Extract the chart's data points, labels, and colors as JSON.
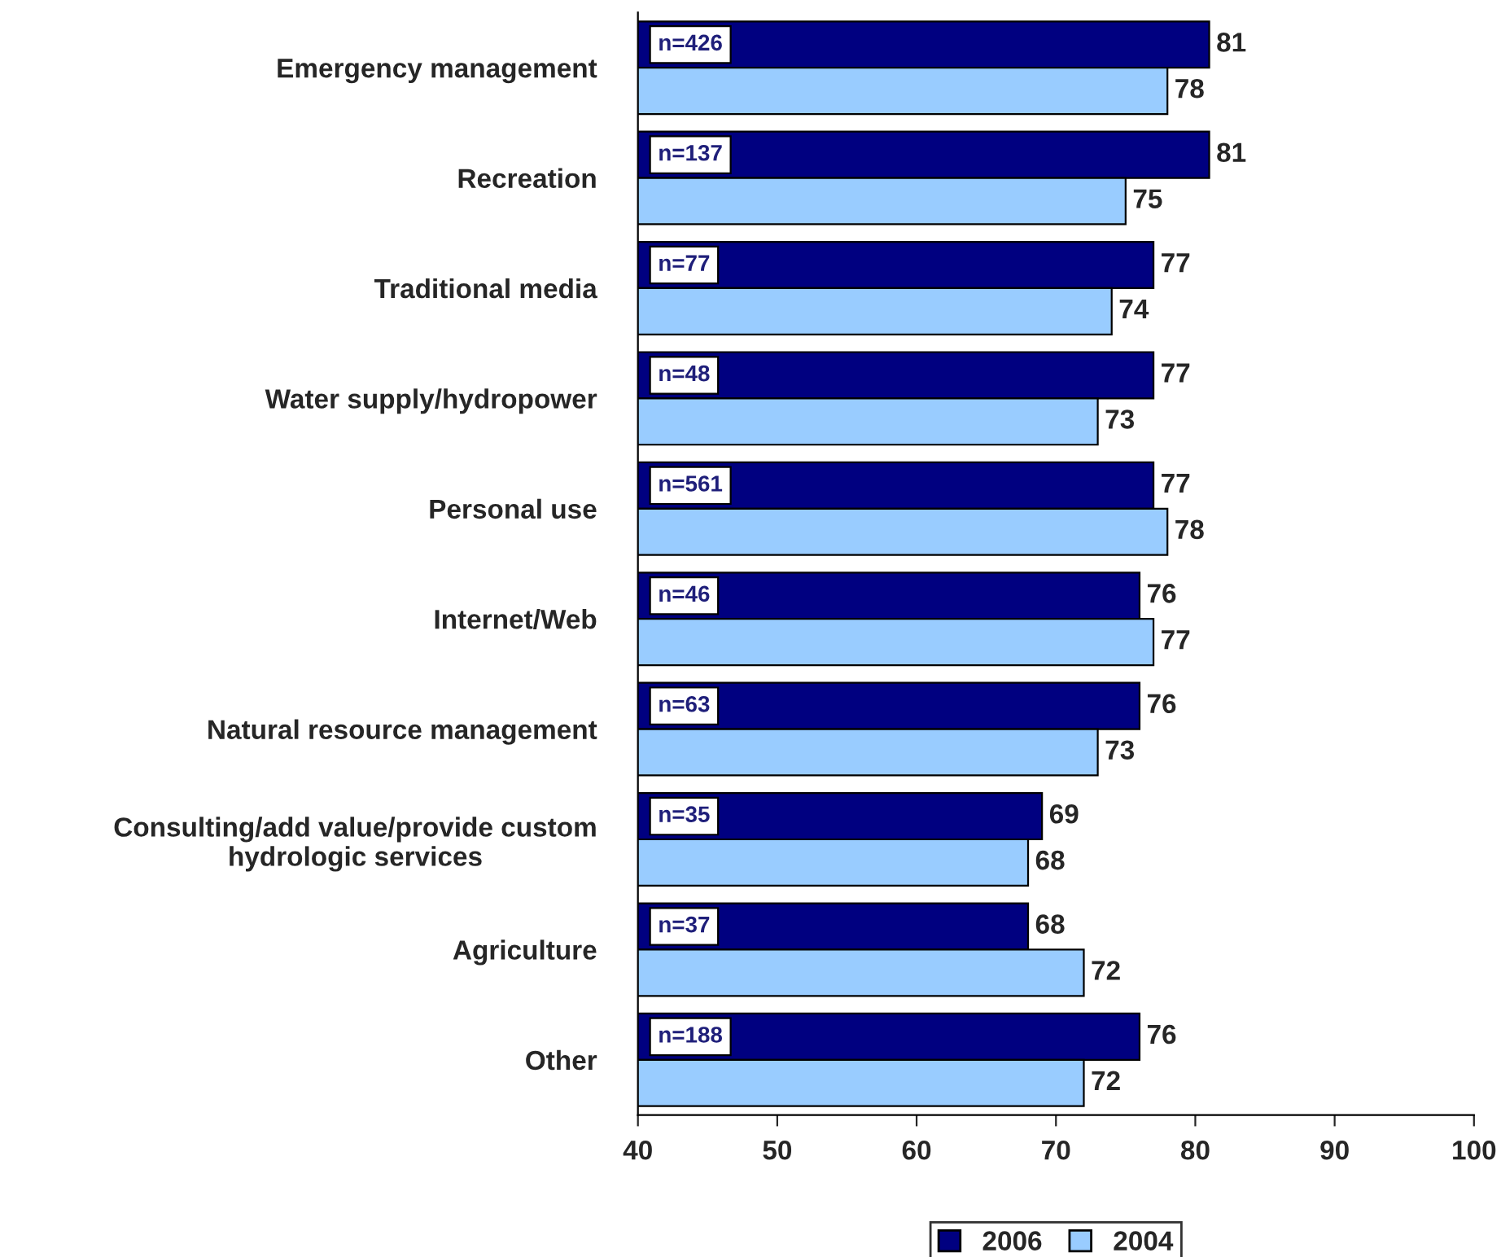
{
  "chart_data": {
    "type": "bar",
    "orientation": "horizontal",
    "categories": [
      "Emergency management",
      "Recreation",
      "Traditional media",
      "Water supply/hydropower",
      "Personal use",
      "Internet/Web",
      "Natural resource management",
      "Consulting/add value/provide custom\nhydrologic services",
      "Agriculture",
      "Other"
    ],
    "series": [
      {
        "name": "2006",
        "color": "#000080",
        "values": [
          81,
          81,
          77,
          77,
          77,
          76,
          76,
          69,
          68,
          76
        ]
      },
      {
        "name": "2004",
        "color": "#99ccff",
        "values": [
          78,
          75,
          74,
          73,
          78,
          77,
          73,
          68,
          72,
          72
        ]
      }
    ],
    "xlim": [
      40,
      100
    ],
    "xticks": [
      40,
      50,
      60,
      70,
      80,
      90,
      100
    ],
    "data_labels": true,
    "grid": false,
    "legend": "bottom",
    "annotations": [
      "n=426",
      "n=137",
      "n=77",
      "n=48",
      "n=561",
      "n=46",
      "n=63",
      "n=35",
      "n=37",
      "n=188"
    ]
  }
}
